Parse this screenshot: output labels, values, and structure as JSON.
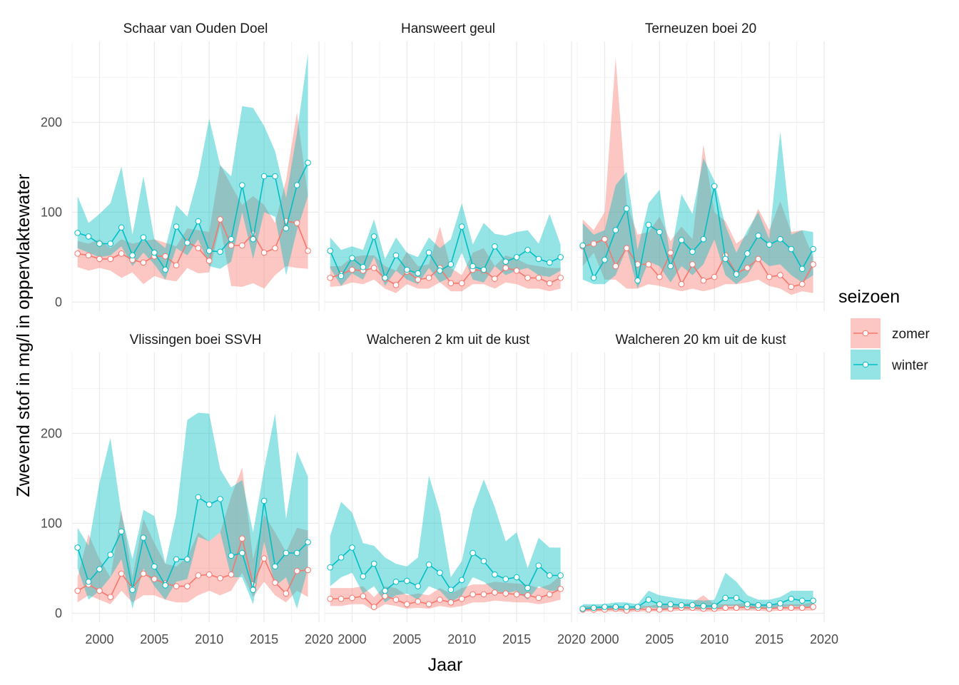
{
  "chart_data": {
    "type": "line",
    "xlabel": "Jaar",
    "ylabel": "Zwevend stof in mg/l in oppervlaktewater",
    "xlim": [
      1997.5,
      2020
    ],
    "ylim": [
      -10,
      290
    ],
    "x_ticks": [
      2000,
      2005,
      2010,
      2015,
      2020
    ],
    "x_tick_labels": [
      "2000",
      "2005",
      "2010",
      "2015",
      "2020"
    ],
    "y_ticks": [
      0,
      100,
      200
    ],
    "y_tick_labels": [
      "0",
      "100",
      "200"
    ],
    "legend": {
      "title": "seizoen",
      "position": "right",
      "entries": [
        {
          "name": "zomer",
          "color": "#F8766D"
        },
        {
          "name": "winter",
          "color": "#00BFC4"
        }
      ]
    },
    "colors": {
      "zomer": "#F8766D",
      "winter": "#00BFC4",
      "grid": "#ebebeb"
    },
    "years": [
      1998,
      1999,
      2000,
      2001,
      2002,
      2003,
      2004,
      2005,
      2006,
      2007,
      2008,
      2009,
      2010,
      2011,
      2012,
      2013,
      2014,
      2015,
      2016,
      2017,
      2018,
      2019
    ],
    "panels": [
      {
        "title": "Schaar van Ouden Doel",
        "series": [
          {
            "name": "zomer",
            "values": [
              54,
              52,
              48,
              48,
              54,
              47,
              44,
              51,
              51,
              41,
              67,
              60,
              46,
              92,
              63,
              63,
              76,
              55,
              60,
              90,
              88,
              57
            ],
            "lower": [
              39,
              35,
              38,
              35,
              27,
              33,
              20,
              29,
              25,
              23,
              38,
              32,
              33,
              85,
              18,
              17,
              21,
              15,
              30,
              40,
              38,
              37
            ],
            "upper": [
              68,
              65,
              70,
              60,
              70,
              65,
              68,
              70,
              66,
              62,
              82,
              80,
              78,
              153,
              130,
              108,
              118,
              108,
              88,
              136,
              211,
              118
            ]
          },
          {
            "name": "winter",
            "values": [
              77,
              73,
              65,
              65,
              83,
              52,
              72,
              55,
              36,
              84,
              66,
              90,
              57,
              56,
              70,
              130,
              70,
              140,
              140,
              82,
              130,
              155
            ],
            "lower": [
              60,
              55,
              50,
              52,
              62,
              40,
              55,
              42,
              25,
              60,
              52,
              70,
              40,
              37,
              45,
              100,
              48,
              100,
              95,
              30,
              80,
              118
            ],
            "upper": [
              118,
              88,
              98,
              110,
              151,
              75,
              140,
              70,
              60,
              108,
              95,
              140,
              204,
              152,
              140,
              218,
              216,
              196,
              168,
              116,
              188,
              277
            ]
          }
        ]
      },
      {
        "title": "Hansweert geul",
        "series": [
          {
            "name": "zomer",
            "values": [
              27,
              31,
              36,
              35,
              38,
              26,
              19,
              34,
              25,
              27,
              38,
              21,
              21,
              36,
              35,
              26,
              38,
              35,
              27,
              27,
              21,
              27
            ],
            "lower": [
              17,
              18,
              22,
              20,
              25,
              15,
              10,
              20,
              15,
              15,
              22,
              12,
              12,
              20,
              20,
              15,
              22,
              20,
              15,
              15,
              12,
              15
            ],
            "upper": [
              40,
              40,
              50,
              52,
              52,
              40,
              35,
              56,
              40,
              42,
              84,
              38,
              30,
              55,
              60,
              40,
              52,
              48,
              42,
              40,
              38,
              38
            ]
          },
          {
            "name": "winter",
            "values": [
              57,
              29,
              49,
              39,
              73,
              27,
              52,
              36,
              32,
              55,
              35,
              42,
              84,
              40,
              36,
              62,
              45,
              50,
              58,
              48,
              44,
              50
            ],
            "lower": [
              38,
              18,
              32,
              25,
              50,
              18,
              35,
              25,
              20,
              38,
              22,
              28,
              55,
              25,
              22,
              40,
              30,
              35,
              38,
              30,
              28,
              35
            ],
            "upper": [
              72,
              58,
              62,
              58,
              92,
              48,
              72,
              55,
              50,
              72,
              60,
              70,
              110,
              64,
              88,
              76,
              74,
              78,
              80,
              65,
              98,
              64
            ]
          }
        ]
      },
      {
        "title": "Terneuzen boei 20",
        "series": [
          {
            "name": "zomer",
            "values": [
              62,
              65,
              70,
              40,
              60,
              42,
              42,
              28,
              55,
              20,
              42,
              24,
              28,
              52,
              32,
              38,
              48,
              28,
              30,
              17,
              20,
              42
            ],
            "lower": [
              40,
              55,
              25,
              25,
              15,
              15,
              20,
              18,
              15,
              12,
              15,
              12,
              15,
              20,
              20,
              22,
              25,
              18,
              15,
              8,
              12,
              10
            ],
            "upper": [
              92,
              80,
              100,
              272,
              110,
              75,
              78,
              95,
              68,
              84,
              70,
              175,
              100,
              90,
              65,
              75,
              104,
              80,
              112,
              78,
              80,
              50
            ]
          },
          {
            "name": "winter",
            "values": [
              63,
              27,
              47,
              80,
              104,
              24,
              86,
              78,
              40,
              69,
              56,
              70,
              129,
              48,
              31,
              54,
              74,
              64,
              70,
              59,
              37,
              59
            ],
            "lower": [
              25,
              20,
              20,
              30,
              60,
              15,
              45,
              40,
              22,
              40,
              30,
              42,
              70,
              30,
              20,
              30,
              50,
              40,
              42,
              30,
              22,
              30
            ],
            "upper": [
              88,
              75,
              80,
              130,
              145,
              58,
              110,
              125,
              50,
              120,
              98,
              160,
              135,
              85,
              55,
              80,
              100,
              70,
              190,
              75,
              80,
              78
            ]
          }
        ]
      },
      {
        "title": "Vlissingen boei SSVH",
        "series": [
          {
            "name": "zomer",
            "values": [
              25,
              32,
              25,
              18,
              44,
              28,
              44,
              38,
              33,
              30,
              30,
              42,
              43,
              39,
              43,
              83,
              32,
              61,
              34,
              22,
              47,
              48
            ],
            "lower": [
              12,
              20,
              15,
              10,
              25,
              12,
              20,
              20,
              15,
              12,
              12,
              20,
              25,
              20,
              25,
              45,
              18,
              35,
              20,
              12,
              25,
              18
            ],
            "upper": [
              40,
              88,
              60,
              40,
              115,
              40,
              105,
              78,
              55,
              52,
              62,
              90,
              80,
              90,
              130,
              162,
              60,
              110,
              90,
              68,
              95,
              92
            ]
          },
          {
            "name": "winter",
            "values": [
              73,
              35,
              49,
              65,
              91,
              26,
              84,
              52,
              31,
              60,
              60,
              129,
              121,
              127,
              64,
              67,
              26,
              125,
              52,
              67,
              67,
              79
            ],
            "lower": [
              50,
              15,
              25,
              40,
              60,
              5,
              50,
              30,
              15,
              35,
              38,
              85,
              80,
              90,
              40,
              40,
              10,
              80,
              30,
              40,
              5,
              50
            ],
            "upper": [
              95,
              75,
              145,
              195,
              110,
              60,
              115,
              108,
              55,
              110,
              215,
              223,
              222,
              160,
              140,
              148,
              90,
              160,
              222,
              105,
              180,
              152
            ]
          }
        ]
      },
      {
        "title": "Walcheren 2 km uit de kust",
        "series": [
          {
            "name": "zomer",
            "values": [
              16,
              16,
              17,
              19,
              7,
              19,
              15,
              10,
              13,
              10,
              15,
              12,
              16,
              21,
              21,
              23,
              22,
              21,
              20,
              17,
              21,
              27
            ],
            "lower": [
              8,
              8,
              10,
              10,
              3,
              10,
              8,
              5,
              6,
              5,
              8,
              6,
              8,
              12,
              12,
              14,
              13,
              12,
              12,
              10,
              12,
              15
            ],
            "upper": [
              28,
              28,
              28,
              30,
              18,
              30,
              28,
              20,
              22,
              20,
              28,
              22,
              28,
              32,
              32,
              35,
              34,
              33,
              32,
              28,
              32,
              42
            ]
          },
          {
            "name": "winter",
            "values": [
              51,
              62,
              73,
              41,
              55,
              25,
              35,
              36,
              30,
              54,
              45,
              26,
              37,
              67,
              58,
              43,
              38,
              40,
              28,
              53,
              42,
              42
            ],
            "lower": [
              30,
              40,
              45,
              22,
              30,
              12,
              20,
              22,
              15,
              30,
              25,
              12,
              20,
              40,
              35,
              25,
              22,
              25,
              15,
              30,
              25,
              25
            ],
            "upper": [
              86,
              124,
              112,
              78,
              75,
              62,
              55,
              52,
              62,
              153,
              112,
              40,
              58,
              115,
              149,
              118,
              80,
              90,
              50,
              84,
              73,
              73
            ]
          }
        ]
      },
      {
        "title": "Walcheren 20 km uit de kust",
        "series": [
          {
            "name": "zomer",
            "values": [
              4,
              4,
              4,
              5,
              3,
              5,
              4,
              4,
              5,
              6,
              6,
              5,
              5,
              6,
              6,
              7,
              6,
              5,
              6,
              6,
              6,
              7
            ],
            "lower": [
              2,
              2,
              2,
              2,
              1,
              2,
              2,
              2,
              2,
              3,
              3,
              2,
              2,
              3,
              3,
              3,
              3,
              2,
              3,
              3,
              3,
              3
            ],
            "upper": [
              8,
              8,
              8,
              9,
              6,
              9,
              8,
              10,
              10,
              10,
              12,
              20,
              10,
              10,
              10,
              12,
              10,
              10,
              10,
              10,
              10,
              12
            ]
          },
          {
            "name": "winter",
            "values": [
              5,
              6,
              7,
              7,
              7,
              7,
              15,
              10,
              10,
              9,
              9,
              8,
              8,
              17,
              17,
              10,
              9,
              9,
              11,
              16,
              14,
              14
            ],
            "lower": [
              3,
              4,
              4,
              4,
              4,
              4,
              7,
              5,
              5,
              5,
              5,
              4,
              4,
              8,
              8,
              5,
              5,
              5,
              6,
              8,
              7,
              7
            ],
            "upper": [
              10,
              10,
              10,
              12,
              12,
              10,
              25,
              20,
              18,
              16,
              15,
              14,
              15,
              45,
              35,
              20,
              15,
              15,
              18,
              25,
              25,
              25
            ]
          }
        ]
      }
    ]
  }
}
